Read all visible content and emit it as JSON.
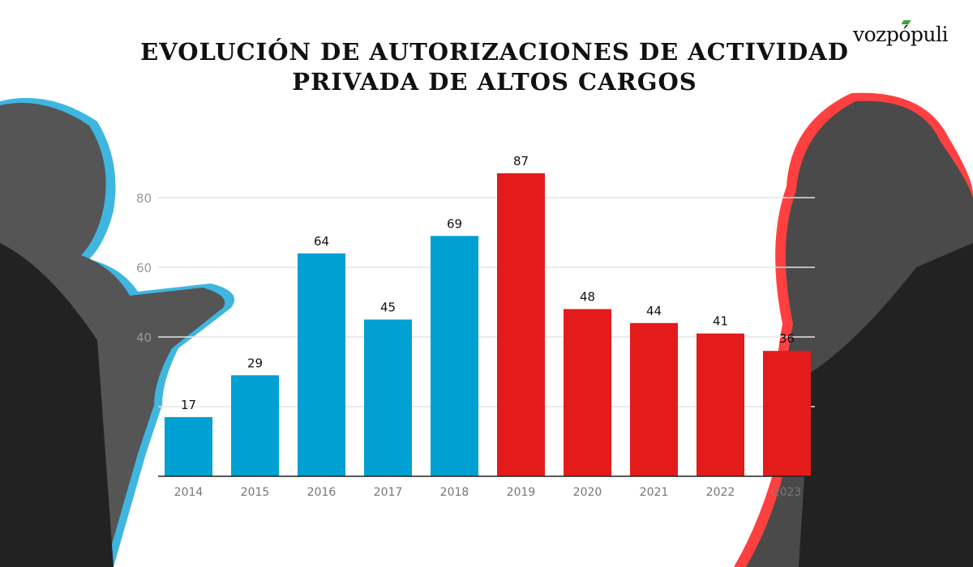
{
  "brand": {
    "logo_text": "vozpópuli",
    "accent_color": "#3aa33a"
  },
  "chart_data": {
    "type": "bar",
    "title": "EVOLUCIÓN DE AUTORIZACIONES DE ACTIVIDAD PRIVADA DE ALTOS CARGOS",
    "title_lines": [
      "EVOLUCIÓN DE AUTORIZACIONES DE ACTIVIDAD",
      "PRIVADA DE ALTOS CARGOS"
    ],
    "xlabel": "",
    "ylabel": "",
    "categories": [
      "2014",
      "2015",
      "2016",
      "2017",
      "2018",
      "2019",
      "2020",
      "2021",
      "2022",
      "2023"
    ],
    "values": [
      17,
      29,
      64,
      45,
      69,
      87,
      48,
      44,
      41,
      36
    ],
    "bar_colors": [
      "#00a0d2",
      "#00a0d2",
      "#00a0d2",
      "#00a0d2",
      "#00a0d2",
      "#e31b1b",
      "#e31b1b",
      "#e31b1b",
      "#e31b1b",
      "#e31b1b"
    ],
    "ylim": [
      0,
      90
    ],
    "yticks": [
      20,
      40,
      60,
      80
    ],
    "ytick_labels_shown": [
      "40",
      "60",
      "80"
    ],
    "grid": true,
    "data_labels": true
  }
}
